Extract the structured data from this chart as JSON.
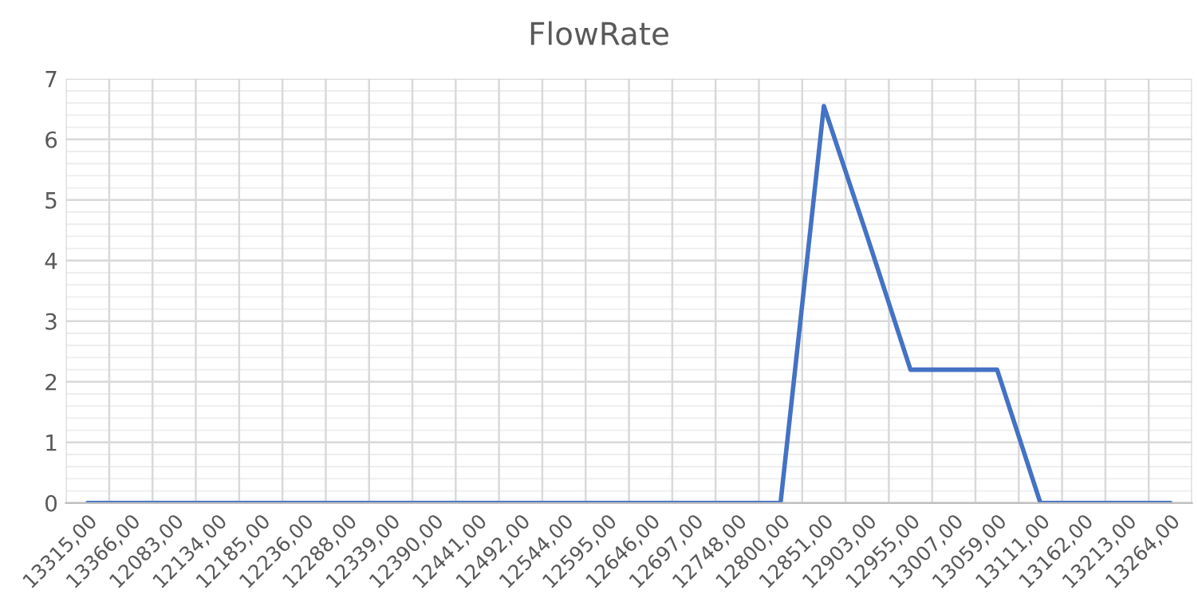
{
  "chart_data": {
    "type": "line",
    "title": "FlowRate",
    "categories": [
      "13315,00",
      "13366,00",
      "12083,00",
      "12134,00",
      "12185,00",
      "12236,00",
      "12288,00",
      "12339,00",
      "12390,00",
      "12441,00",
      "12492,00",
      "12544,00",
      "12595,00",
      "12646,00",
      "12697,00",
      "12748,00",
      "12800,00",
      "12851,00",
      "12903,00",
      "12955,00",
      "13007,00",
      "13059,00",
      "13111,00",
      "13162,00",
      "13213,00",
      "13264,00"
    ],
    "series": [
      {
        "color": "#4472c4",
        "values": [
          0,
          0,
          0,
          0,
          0,
          0,
          0,
          0,
          0,
          0,
          0,
          0,
          0,
          0,
          0,
          0,
          0,
          6.55,
          4.4,
          2.2,
          2.2,
          2.2,
          0,
          0,
          0,
          0
        ]
      }
    ],
    "ylim": [
      0,
      7
    ],
    "yticks": [
      0,
      1,
      2,
      3,
      4,
      5,
      6,
      7
    ],
    "grid": true,
    "legend": false,
    "marker": "none",
    "line_style": "solid"
  }
}
